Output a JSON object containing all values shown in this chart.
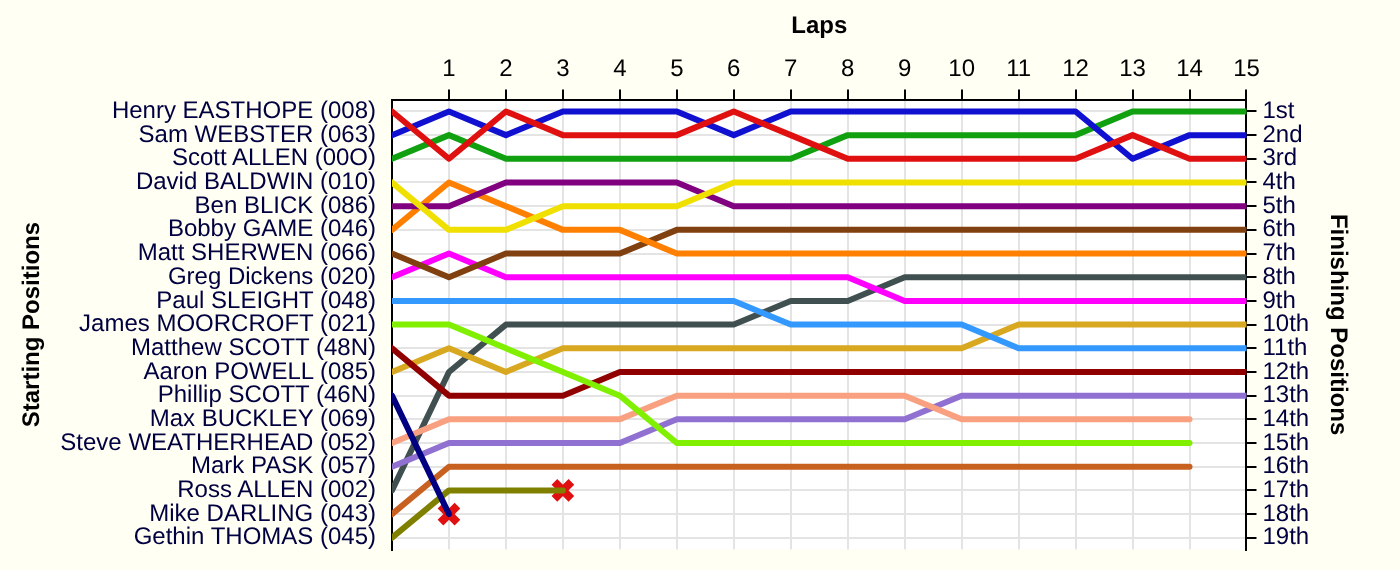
{
  "chart_data": {
    "type": "line",
    "xlabel": "Laps",
    "annotations": [
      "Starting Positions"
    ],
    "y2label": "Finishing Positions",
    "x": [
      0,
      1,
      2,
      3,
      4,
      5,
      6,
      7,
      8,
      9,
      10,
      11,
      12,
      13,
      14,
      15
    ],
    "xlim": [
      0,
      15
    ],
    "xticks": [
      1,
      2,
      3,
      4,
      5,
      6,
      7,
      8,
      9,
      10,
      11,
      12,
      13,
      14,
      15
    ],
    "y_categories": [
      "Henry EASTHOPE (008)",
      "Sam WEBSTER (063)",
      "Scott ALLEN (00O)",
      "David BALDWIN (010)",
      "Ben BLICK (086)",
      "Bobby GAME (046)",
      "Matt SHERWEN (066)",
      "Greg Dickens (020)",
      "Paul SLEIGHT (048)",
      "James MOORCROFT (021)",
      "Matthew SCOTT (48N)",
      "Aaron POWELL (085)",
      "Phillip SCOTT (46N)",
      "Max BUCKLEY (069)",
      "Steve WEATHERHEAD (052)",
      "Mark PASK (057)",
      "Ross ALLEN (002)",
      "Mike DARLING (043)",
      "Gethin THOMAS (045)"
    ],
    "y2lim": [
      19.5,
      0.5
    ],
    "y2ticks": [
      {
        "value": 1,
        "label": "1st"
      },
      {
        "value": 2,
        "label": "2nd"
      },
      {
        "value": 3,
        "label": "3rd"
      },
      {
        "value": 4,
        "label": "4th"
      },
      {
        "value": 5,
        "label": "5th"
      },
      {
        "value": 6,
        "label": "6th"
      },
      {
        "value": 7,
        "label": "7th"
      },
      {
        "value": 8,
        "label": "8th"
      },
      {
        "value": 9,
        "label": "9th"
      },
      {
        "value": 10,
        "label": "10th"
      },
      {
        "value": 11,
        "label": "11th"
      },
      {
        "value": 12,
        "label": "12th"
      },
      {
        "value": 13,
        "label": "13th"
      },
      {
        "value": 14,
        "label": "14th"
      },
      {
        "value": 15,
        "label": "15th"
      },
      {
        "value": 16,
        "label": "16th"
      },
      {
        "value": 17,
        "label": "17th"
      },
      {
        "value": 18,
        "label": "18th"
      },
      {
        "value": 19,
        "label": "19th"
      }
    ],
    "grid": true,
    "legend": false,
    "marker": "none",
    "line_style": "solid",
    "series": [
      {
        "axis": "y2",
        "color": "#e01010",
        "values": [
          1,
          3,
          1,
          2,
          2,
          2,
          1,
          2,
          3,
          3,
          3,
          3,
          3,
          2,
          3,
          3
        ]
      },
      {
        "axis": "y2",
        "color": "#1010d0",
        "values": [
          2,
          1,
          2,
          1,
          1,
          1,
          2,
          1,
          1,
          1,
          1,
          1,
          1,
          3,
          2,
          2
        ]
      },
      {
        "axis": "y2",
        "color": "#10a010",
        "values": [
          3,
          2,
          3,
          3,
          3,
          3,
          3,
          3,
          2,
          2,
          2,
          2,
          2,
          1,
          1,
          1
        ]
      },
      {
        "axis": "y2",
        "color": "#f0e000",
        "values": [
          4,
          6,
          6,
          5,
          5,
          5,
          4,
          4,
          4,
          4,
          4,
          4,
          4,
          4,
          4,
          4
        ]
      },
      {
        "axis": "y2",
        "color": "#800080",
        "values": [
          5,
          5,
          4,
          4,
          4,
          4,
          5,
          5,
          5,
          5,
          5,
          5,
          5,
          5,
          5,
          5
        ]
      },
      {
        "axis": "y2",
        "color": "#ff8000",
        "values": [
          6,
          4,
          5,
          6,
          6,
          7,
          7,
          7,
          7,
          7,
          7,
          7,
          7,
          7,
          7,
          7
        ]
      },
      {
        "axis": "y2",
        "color": "#804010",
        "values": [
          7,
          8,
          7,
          7,
          7,
          6,
          6,
          6,
          6,
          6,
          6,
          6,
          6,
          6,
          6,
          6
        ]
      },
      {
        "axis": "y2",
        "color": "#ff00ff",
        "values": [
          8,
          7,
          8,
          8,
          8,
          8,
          8,
          8,
          8,
          9,
          9,
          9,
          9,
          9,
          9,
          9
        ]
      },
      {
        "axis": "y2",
        "color": "#3399ff",
        "values": [
          9,
          9,
          9,
          9,
          9,
          9,
          9,
          10,
          10,
          10,
          10,
          11,
          11,
          11,
          11,
          11
        ]
      },
      {
        "axis": "y2",
        "color": "#80f000",
        "values": [
          10,
          10,
          11,
          12,
          13,
          15,
          15,
          15,
          15,
          15,
          15,
          15,
          15,
          15,
          15,
          null
        ]
      },
      {
        "axis": "y2",
        "color": "#900000",
        "values": [
          11,
          13,
          13,
          13,
          12,
          12,
          12,
          12,
          12,
          12,
          12,
          12,
          12,
          12,
          12,
          12
        ]
      },
      {
        "axis": "y2",
        "color": "#d8a820",
        "values": [
          12,
          11,
          12,
          11,
          11,
          11,
          11,
          11,
          11,
          11,
          11,
          10,
          10,
          10,
          10,
          10
        ]
      },
      {
        "axis": "y2",
        "color": "#000080",
        "values": [
          13,
          18,
          null,
          null,
          null,
          null,
          null,
          null,
          null,
          null,
          null,
          null,
          null,
          null,
          null,
          null
        ]
      },
      {
        "axis": "y2",
        "color": "#f8a080",
        "values": [
          15,
          14,
          14,
          14,
          14,
          13,
          13,
          13,
          13,
          13,
          14,
          14,
          14,
          14,
          14,
          null
        ]
      },
      {
        "axis": "y2",
        "color": "#9070d0",
        "values": [
          16,
          15,
          15,
          15,
          15,
          14,
          14,
          14,
          14,
          14,
          13,
          13,
          13,
          13,
          13,
          13
        ]
      },
      {
        "axis": "y2",
        "color": "#405050",
        "values": [
          17,
          12,
          10,
          10,
          10,
          10,
          10,
          9,
          9,
          8,
          8,
          8,
          8,
          8,
          8,
          8
        ]
      },
      {
        "axis": "y2",
        "color": "#c86020",
        "values": [
          18,
          16,
          16,
          16,
          16,
          16,
          16,
          16,
          16,
          16,
          16,
          16,
          16,
          16,
          16,
          null
        ]
      },
      {
        "axis": "y2",
        "color": "#808000",
        "values": [
          19,
          17,
          17,
          17,
          null,
          null,
          null,
          null,
          null,
          null,
          null,
          null,
          null,
          null,
          null,
          null
        ]
      },
      {
        "axis": "y2",
        "type": "scatter",
        "color": "#e01010",
        "marker": "cross",
        "x": [
          1,
          3
        ],
        "values": [
          18,
          17
        ]
      }
    ]
  }
}
